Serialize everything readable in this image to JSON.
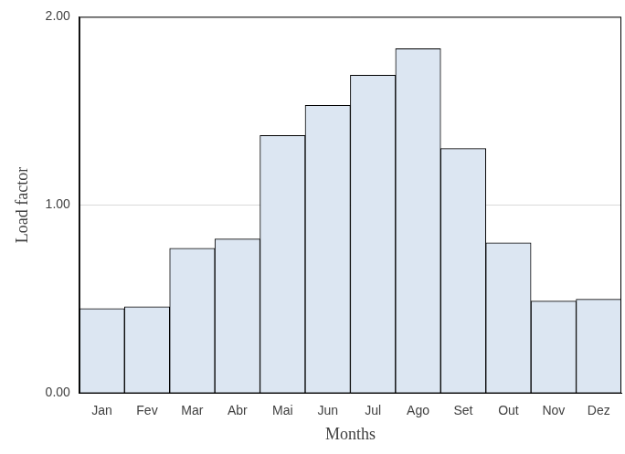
{
  "chart_data": {
    "type": "bar",
    "x_label": "Months",
    "y_label": "Load factor",
    "categories": [
      "Jan",
      "Fev",
      "Mar",
      "Abr",
      "Mai",
      "Jun",
      "Jul",
      "Ago",
      "Set",
      "Out",
      "Nov",
      "Dez"
    ],
    "values": [
      0.45,
      0.46,
      0.77,
      0.82,
      1.37,
      1.53,
      1.69,
      1.83,
      1.3,
      0.8,
      0.49,
      0.5
    ],
    "color": "#dce6f2",
    "ylim": [
      0,
      2
    ],
    "yticks": [
      {
        "value": 0,
        "label": "0.00"
      },
      {
        "value": 1,
        "label": "1.00"
      },
      {
        "value": 2,
        "label": "2.00"
      }
    ],
    "grid": true
  }
}
